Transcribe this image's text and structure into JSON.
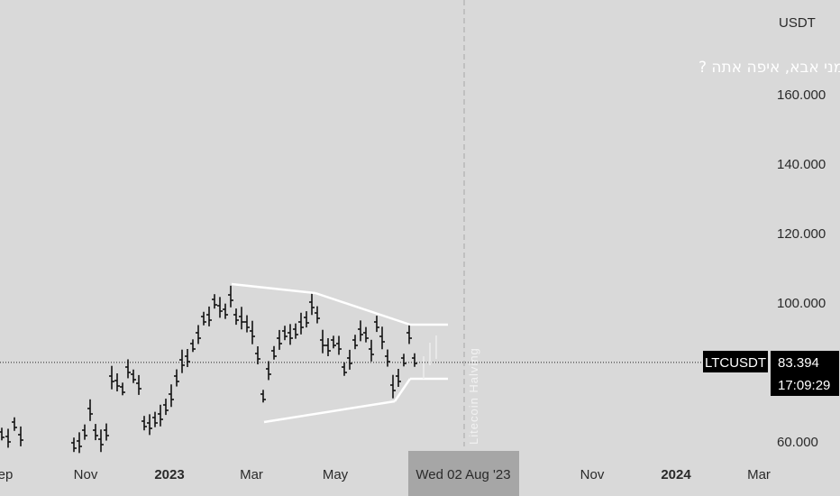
{
  "chart_data": {
    "type": "bar",
    "symbol": "LTCUSDT",
    "currency": "USDT",
    "annotation": "האם הסתרת את פניך ממני אבא, איפה אתה ?",
    "event_label": "Litecoin Halving",
    "crosshair_date": "Wed 02 Aug '23",
    "last_price": "83.394",
    "countdown": "17:09:29",
    "last_value": 83.394,
    "y_ticks": [
      {
        "value": 160,
        "label": "160.000"
      },
      {
        "value": 140,
        "label": "140.000"
      },
      {
        "value": 120,
        "label": "120.000"
      },
      {
        "value": 100,
        "label": "100.000"
      },
      {
        "value": 60,
        "label": "60.000"
      }
    ],
    "x_ticks": [
      {
        "label": "ep",
        "bold": false
      },
      {
        "label": "Nov",
        "bold": false
      },
      {
        "label": "2023",
        "bold": true
      },
      {
        "label": "Mar",
        "bold": false
      },
      {
        "label": "May",
        "bold": false
      },
      {
        "label": "Nov",
        "bold": false
      },
      {
        "label": "2024",
        "bold": true
      },
      {
        "label": "Mar",
        "bold": false
      }
    ],
    "ylim": [
      56,
      186
    ],
    "colors": {
      "background": "#d9d9d9",
      "bars": "#111111",
      "trendlines": "#ffffff",
      "tag_bg": "#000000",
      "date_bg": "#a6a6a6"
    }
  }
}
